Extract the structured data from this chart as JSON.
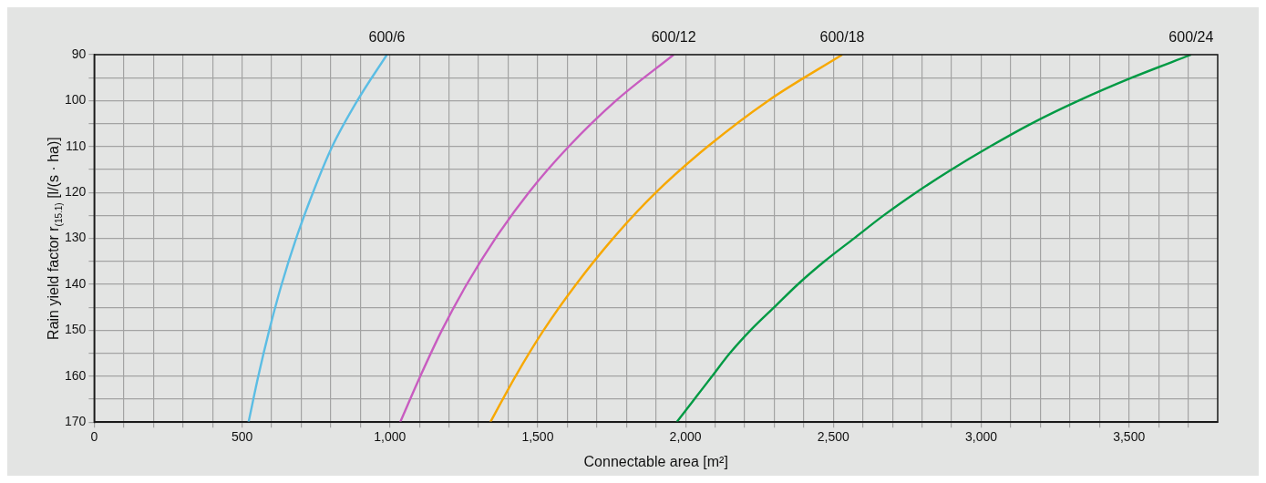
{
  "chart_data": {
    "type": "line",
    "xlabel": "Connectable area [m²]",
    "ylabel": "Rain yield factor r$_{(15.1)}$ [l/(s · ha)]",
    "xlim": [
      0,
      3800
    ],
    "xticks": [
      0,
      {
        "value": 100,
        "label": null
      },
      {
        "value": 200,
        "label": null
      },
      {
        "value": 300,
        "label": null
      },
      {
        "value": 400,
        "label": null
      },
      {
        "value": 500,
        "label": "500"
      },
      {
        "value": 600,
        "label": null
      },
      {
        "value": 700,
        "label": null
      },
      {
        "value": 800,
        "label": null
      },
      {
        "value": 900,
        "label": null
      },
      {
        "value": 1000,
        "label": "1,000"
      },
      {
        "value": 1100,
        "label": null
      },
      {
        "value": 1200,
        "label": null
      },
      {
        "value": 1300,
        "label": null
      },
      {
        "value": 1400,
        "label": null
      },
      {
        "value": 1500,
        "label": "1,500"
      },
      {
        "value": 1600,
        "label": null
      },
      {
        "value": 1700,
        "label": null
      },
      {
        "value": 1800,
        "label": null
      },
      {
        "value": 1900,
        "label": null
      },
      {
        "value": 2000,
        "label": "2,000"
      },
      {
        "value": 2100,
        "label": null
      },
      {
        "value": 2200,
        "label": null
      },
      {
        "value": 2300,
        "label": null
      },
      {
        "value": 2400,
        "label": null
      },
      {
        "value": 2500,
        "label": "2,500"
      },
      {
        "value": 2600,
        "label": null
      },
      {
        "value": 2700,
        "label": null
      },
      {
        "value": 2800,
        "label": null
      },
      {
        "value": 2900,
        "label": null
      },
      {
        "value": 3000,
        "label": "3,000"
      },
      {
        "value": 3100,
        "label": null
      },
      {
        "value": 3200,
        "label": null
      },
      {
        "value": 3300,
        "label": null
      },
      {
        "value": 3400,
        "label": null
      },
      {
        "value": 3500,
        "label": "3,500"
      },
      {
        "value": 3600,
        "label": null
      },
      {
        "value": 3700,
        "label": null
      }
    ],
    "ylim": [
      170,
      90
    ],
    "yticks": [
      90,
      {
        "value": 95,
        "label": null
      },
      100,
      {
        "value": 105,
        "label": null
      },
      110,
      {
        "value": 115,
        "label": null
      },
      120,
      {
        "value": 125,
        "label": null
      },
      130,
      {
        "value": 135,
        "label": null
      },
      140,
      {
        "value": 145,
        "label": null
      },
      150,
      {
        "value": 155,
        "label": null
      },
      160,
      {
        "value": 165,
        "label": null
      },
      170
    ],
    "grid": true,
    "legend": false,
    "marker": "none",
    "line_style": "solid",
    "series": [
      {
        "name": "600/6",
        "color": "#5bbde4",
        "x": [
          990,
          890,
          805,
          740,
          683,
          634,
          592,
          555,
          522
        ],
        "values": [
          90,
          100,
          110,
          120,
          130,
          140,
          150,
          160,
          170
        ]
      },
      {
        "name": "600/12",
        "color": "#c85cc0",
        "x": [
          1960,
          1765,
          1605,
          1470,
          1357,
          1260,
          1176,
          1103,
          1035
        ],
        "values": [
          90,
          100,
          110,
          120,
          130,
          140,
          150,
          160,
          170
        ]
      },
      {
        "name": "600/18",
        "color": "#f7a800",
        "x": [
          2530,
          2280,
          2075,
          1900,
          1755,
          1630,
          1520,
          1425,
          1340
        ],
        "values": [
          90,
          100,
          110,
          120,
          130,
          140,
          150,
          160,
          170
        ]
      },
      {
        "name": "600/24",
        "color": "#009a44",
        "x": [
          3710,
          3510,
          3330,
          3170,
          3030,
          2900,
          2780,
          2670,
          2570,
          2470,
          2380,
          2300,
          2220,
          2150,
          2090,
          2030,
          1970
        ],
        "values": [
          90,
          95,
          100,
          105,
          110,
          115,
          120,
          125,
          130,
          135,
          140,
          145,
          150,
          155,
          160,
          165,
          170
        ]
      }
    ]
  }
}
